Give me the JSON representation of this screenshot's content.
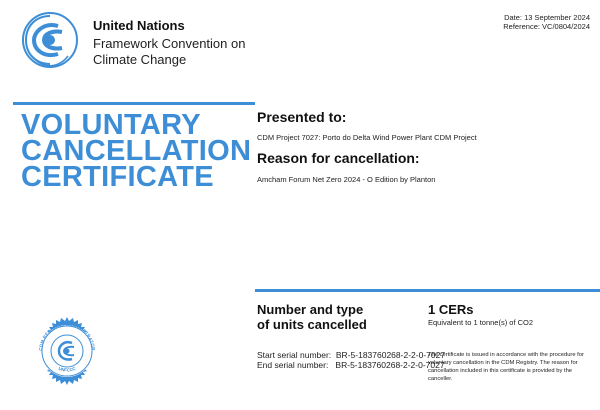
{
  "header": {
    "org_name": "United Nations",
    "org_line1": "Framework Convention on",
    "org_line2": "Climate Change",
    "date": "Date: 13 September 2024",
    "reference": "Reference: VC/0804/2024"
  },
  "title": {
    "line1": "VOLUNTARY",
    "line2": "CANCELLATION",
    "line3": "CERTIFICATE"
  },
  "presented": {
    "label": "Presented to:",
    "value": "CDM Project 7027: Porto do Delta Wind Power Plant CDM Project"
  },
  "reason": {
    "label": "Reason for cancellation:",
    "value": "Amcham Forum Net Zero 2024 - O Edition by Planton"
  },
  "units": {
    "label_line1": "Number and type",
    "label_line2": "of units cancelled",
    "amount": "1 CERs",
    "equivalent": "Equivalent to 1 tonne(s) of CO2"
  },
  "serials": {
    "start": "Start serial number:  BR-5-183760268-2-2-0-7027",
    "end": "End serial number:   BR-5-183760268-2-2-0-7027"
  },
  "note": "The certificate is issued in accordance with the procedure for voluntary cancellation in the CDM Registry. The reason for cancellation included in this certificate is provided by the canceller.",
  "seal": {
    "top_text": "CDM REGISTRY ADMINISTRATOR",
    "bottom_text": "UNFCCC"
  },
  "colors": {
    "accent": "#3d8ed6"
  },
  "icons": {
    "logo": "unfccc-logo-icon",
    "seal": "registry-seal-icon"
  }
}
